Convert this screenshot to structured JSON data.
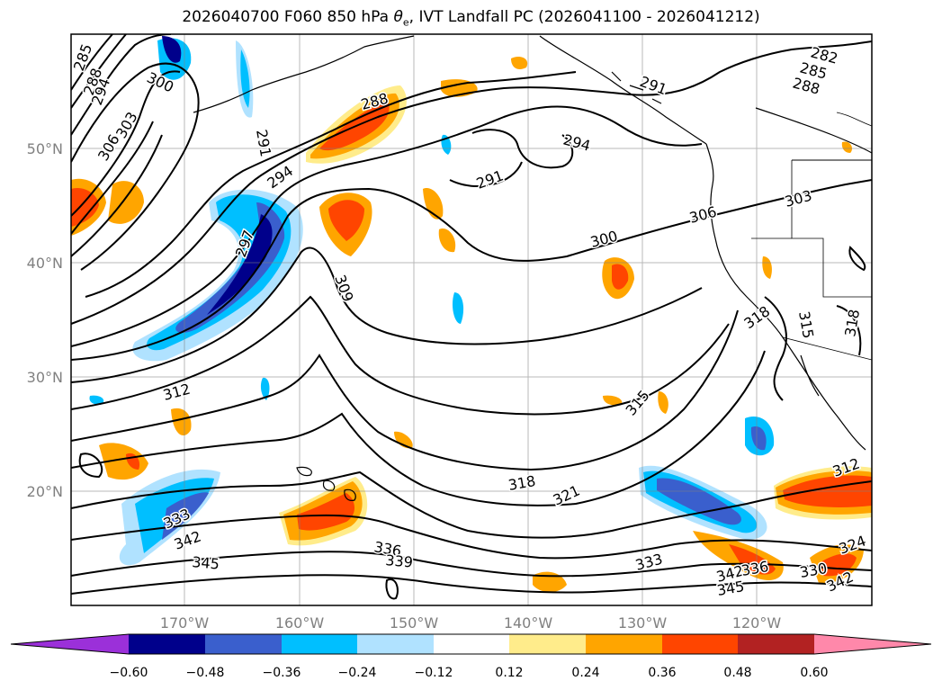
{
  "figure": {
    "title_prefix": "2026040700 F060 850 hPa ",
    "title_symbol": "θ",
    "title_subscript": "e",
    "title_suffix": ", IVT Landfall PC (2026041100 - 2026041212)"
  },
  "map": {
    "lat_labels": [
      "50°N",
      "40°N",
      "30°N",
      "20°N"
    ],
    "lon_labels": [
      "170°W",
      "160°W",
      "150°W",
      "140°W",
      "130°W",
      "120°W"
    ],
    "contour_labels": [
      "285",
      "288",
      "294",
      "300",
      "303",
      "306",
      "288",
      "291",
      "294",
      "291",
      "282",
      "285",
      "288",
      "291",
      "297",
      "294",
      "309",
      "300",
      "306",
      "303",
      "318",
      "315",
      "318",
      "312",
      "315",
      "318",
      "321",
      "333",
      "342",
      "345",
      "336",
      "339",
      "333",
      "342",
      "345",
      "336",
      "330",
      "342",
      "324",
      "312"
    ]
  },
  "colorbar": {
    "ticks": [
      "−0.60",
      "−0.48",
      "−0.36",
      "−0.24",
      "−0.12",
      "0.12",
      "0.24",
      "0.36",
      "0.48",
      "0.60"
    ],
    "colors": [
      "#9b30d9",
      "#00008b",
      "#3a5fcd",
      "#00bfff",
      "#b0e2ff",
      "#ffffff",
      "#ffec8b",
      "#ffa500",
      "#ff4500",
      "#b22222",
      "#ff88aa"
    ]
  },
  "colors": {
    "contour": "#000000",
    "coast": "#000000",
    "grid": "#808080"
  }
}
